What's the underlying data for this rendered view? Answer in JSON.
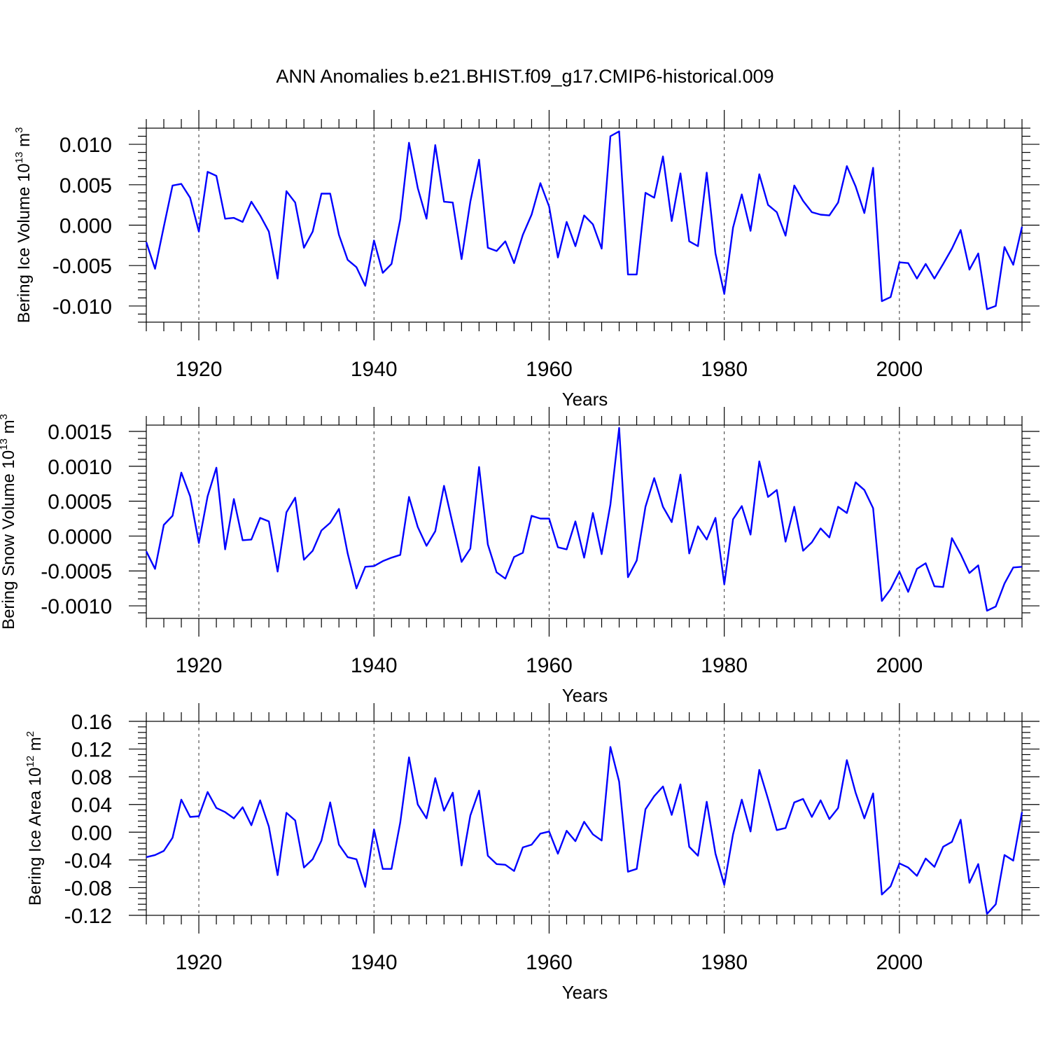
{
  "colors": {
    "series": "#0000ff",
    "axis": "#000000"
  },
  "title": "ANN Anomalies b.e21.BHIST.f09_g17.CMIP6-historical.009",
  "chart_data": [
    {
      "type": "line",
      "ylabel": {
        "main": "Bering Ice Volume 10",
        "sup": "13",
        "unit": " m",
        "unit_sup": "3"
      },
      "xlabel": "Years",
      "x_start": 1914,
      "xlim": [
        1914,
        2014
      ],
      "ylim": [
        -0.012,
        0.012
      ],
      "yticks": [
        -0.01,
        -0.005,
        0.0,
        0.005,
        0.01
      ],
      "ytick_labels": [
        "-0.010",
        "-0.005",
        "0.000",
        "0.005",
        "0.010"
      ],
      "xticks": [
        1920,
        1940,
        1960,
        1980,
        2000
      ],
      "xtick_labels": [
        "1920",
        "1940",
        "1960",
        "1980",
        "2000"
      ],
      "grid_x": true,
      "series": [
        {
          "values": [
            -0.0021,
            -0.0054,
            -0.0002,
            0.0049,
            0.0051,
            0.0034,
            -0.0008,
            0.0066,
            0.0061,
            0.0008,
            0.0009,
            0.0004,
            0.0029,
            0.0012,
            -0.0008,
            -0.0066,
            0.0042,
            0.0028,
            -0.0028,
            -0.0008,
            0.0039,
            0.0039,
            -0.0012,
            -0.0043,
            -0.0052,
            -0.0075,
            -0.0019,
            -0.0059,
            -0.0048,
            0.0007,
            0.0102,
            0.0046,
            0.0008,
            0.0099,
            0.0029,
            0.0028,
            -0.0042,
            0.0029,
            0.0081,
            -0.0028,
            -0.0032,
            -0.002,
            -0.0047,
            -0.0012,
            0.0013,
            0.0052,
            0.0023,
            -0.004,
            0.0004,
            -0.0026,
            0.0012,
            0.0001,
            -0.0029,
            0.011,
            0.0116,
            -0.0061,
            -0.0061,
            0.004,
            0.0034,
            0.0085,
            0.0005,
            0.0064,
            -0.002,
            -0.0026,
            0.0065,
            -0.0035,
            -0.0085,
            -0.0003,
            0.0038,
            -0.0007,
            0.0063,
            0.0025,
            0.0016,
            -0.0013,
            0.0049,
            0.003,
            0.0016,
            0.0013,
            0.0012,
            0.0028,
            0.0073,
            0.0048,
            0.0015,
            0.0071,
            -0.0094,
            -0.0089,
            -0.0046,
            -0.0047,
            -0.0066,
            -0.0048,
            -0.0066,
            -0.0048,
            -0.0029,
            -0.0006,
            -0.0055,
            -0.0035,
            -0.0104,
            -0.01,
            -0.0027,
            -0.0049,
            -0.0002
          ]
        }
      ]
    },
    {
      "type": "line",
      "ylabel": {
        "main": "Bering Snow Volume 10",
        "sup": "13",
        "unit": " m",
        "unit_sup": "3"
      },
      "xlabel": "Years",
      "x_start": 1914,
      "xlim": [
        1914,
        2014
      ],
      "ylim": [
        -0.00118,
        0.00159
      ],
      "yticks": [
        -0.001,
        -0.0005,
        0.0,
        0.0005,
        0.001,
        0.0015
      ],
      "ytick_labels": [
        "-0.0010",
        "-0.0005",
        "0.0000",
        "0.0005",
        "0.0010",
        "0.0015"
      ],
      "xticks": [
        1920,
        1940,
        1960,
        1980,
        2000
      ],
      "xtick_labels": [
        "1920",
        "1940",
        "1960",
        "1980",
        "2000"
      ],
      "grid_x": true,
      "series": [
        {
          "values": [
            -0.00022,
            -0.00047,
            0.00016,
            0.00029,
            0.00091,
            0.00057,
            -0.0001,
            0.00057,
            0.00098,
            -0.00019,
            0.00053,
            -6e-05,
            -5e-05,
            0.00026,
            0.00021,
            -0.00051,
            0.00034,
            0.00055,
            -0.00034,
            -0.00021,
            8e-05,
            0.00019,
            0.00039,
            -0.00025,
            -0.00075,
            -0.00044,
            -0.00043,
            -0.00036,
            -0.00031,
            -0.00027,
            0.00056,
            0.00013,
            -0.00014,
            7e-05,
            0.00072,
            0.00017,
            -0.00037,
            -0.00018,
            0.00099,
            -0.00012,
            -0.00052,
            -0.00061,
            -0.0003,
            -0.00024,
            0.00029,
            0.00025,
            0.00025,
            -0.00016,
            -0.00019,
            0.00021,
            -0.00031,
            0.00033,
            -0.00026,
            0.00045,
            0.00155,
            -0.00059,
            -0.00035,
            0.00042,
            0.00083,
            0.00042,
            0.0002,
            0.00088,
            -0.00025,
            0.00014,
            -5e-05,
            0.00026,
            -0.00069,
            0.00024,
            0.00043,
            2e-05,
            0.00107,
            0.00056,
            0.00066,
            -8e-05,
            0.00042,
            -0.00021,
            -9e-05,
            0.00011,
            -2e-05,
            0.00042,
            0.00033,
            0.00077,
            0.00066,
            0.0004,
            -0.00093,
            -0.00076,
            -0.00051,
            -0.0008,
            -0.00047,
            -0.00039,
            -0.00072,
            -0.00073,
            -3e-05,
            -0.00026,
            -0.00053,
            -0.00042,
            -0.00107,
            -0.00101,
            -0.00068,
            -0.00045,
            -0.00044
          ]
        }
      ]
    },
    {
      "type": "line",
      "ylabel": {
        "main": "Bering Ice Area 10",
        "sup": "12",
        "unit": " m",
        "unit_sup": "2"
      },
      "xlabel": "Years",
      "x_start": 1914,
      "xlim": [
        1914,
        2014
      ],
      "ylim": [
        -0.12,
        0.16
      ],
      "yticks": [
        -0.12,
        -0.08,
        -0.04,
        0.0,
        0.04,
        0.08,
        0.12,
        0.16
      ],
      "ytick_labels": [
        "-0.12",
        "-0.08",
        "-0.04",
        "0.00",
        "0.04",
        "0.08",
        "0.12",
        "0.16"
      ],
      "xticks": [
        1920,
        1940,
        1960,
        1980,
        2000
      ],
      "xtick_labels": [
        "1920",
        "1940",
        "1960",
        "1980",
        "2000"
      ],
      "grid_x": true,
      "series": [
        {
          "values": [
            -0.036,
            -0.033,
            -0.027,
            -0.008,
            0.047,
            0.022,
            0.023,
            0.058,
            0.035,
            0.029,
            0.02,
            0.036,
            0.01,
            0.046,
            0.008,
            -0.062,
            0.028,
            0.017,
            -0.051,
            -0.039,
            -0.012,
            0.043,
            -0.018,
            -0.036,
            -0.039,
            -0.079,
            0.004,
            -0.053,
            -0.053,
            0.014,
            0.108,
            0.04,
            0.02,
            0.078,
            0.031,
            0.057,
            -0.048,
            0.024,
            0.06,
            -0.034,
            -0.046,
            -0.047,
            -0.056,
            -0.022,
            -0.018,
            -0.002,
            0.001,
            -0.031,
            0.002,
            -0.013,
            0.015,
            -0.003,
            -0.012,
            0.123,
            0.073,
            -0.057,
            -0.053,
            0.033,
            0.052,
            0.066,
            0.025,
            0.069,
            -0.021,
            -0.034,
            0.044,
            -0.031,
            -0.076,
            -0.003,
            0.047,
            0.001,
            0.09,
            0.048,
            0.003,
            0.006,
            0.043,
            0.048,
            0.022,
            0.046,
            0.019,
            0.035,
            0.104,
            0.057,
            0.02,
            0.056,
            -0.09,
            -0.078,
            -0.045,
            -0.051,
            -0.063,
            -0.038,
            -0.05,
            -0.021,
            -0.014,
            0.018,
            -0.073,
            -0.046,
            -0.118,
            -0.104,
            -0.033,
            -0.041,
            0.029
          ]
        }
      ]
    }
  ]
}
